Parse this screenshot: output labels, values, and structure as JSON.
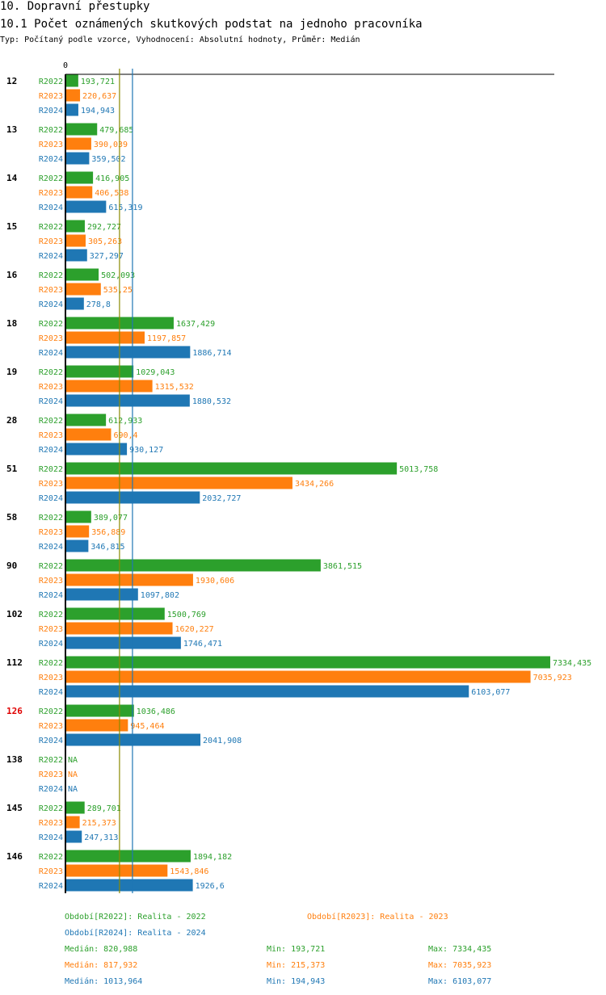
{
  "title": "10. Dopravní přestupky",
  "subtitle": "10.1 Počet oznámených skutkových podstat na jednoho pracovníka",
  "description": "Typ: Počítaný podle vzorce, Vyhodnocení: Absolutní hodnoty, Průměr: Medián",
  "colors": {
    "R2022": "#2ca02c",
    "R2023": "#ff7f0e",
    "R2024": "#1f77b4",
    "highlight": "#e00000",
    "group": "#000000"
  },
  "chart_data": {
    "type": "bar",
    "orientation": "horizontal",
    "axis_zero_label": "0",
    "xlim": [
      0,
      7334.435
    ],
    "series_names": [
      "R2022",
      "R2023",
      "R2024"
    ],
    "groups": [
      {
        "label": "12",
        "highlight": false,
        "values": [
          193.721,
          220.637,
          194.943
        ],
        "labels": [
          "193,721",
          "220,637",
          "194,943"
        ]
      },
      {
        "label": "13",
        "highlight": false,
        "values": [
          479.685,
          390.039,
          359.502
        ],
        "labels": [
          "479,685",
          "390,039",
          "359,502"
        ]
      },
      {
        "label": "14",
        "highlight": false,
        "values": [
          416.905,
          406.538,
          615.319
        ],
        "labels": [
          "416,905",
          "406,538",
          "615,319"
        ]
      },
      {
        "label": "15",
        "highlight": false,
        "values": [
          292.727,
          305.263,
          327.297
        ],
        "labels": [
          "292,727",
          "305,263",
          "327,297"
        ]
      },
      {
        "label": "16",
        "highlight": false,
        "values": [
          502.093,
          535.25,
          278.8
        ],
        "labels": [
          "502,093",
          "535,25",
          "278,8"
        ]
      },
      {
        "label": "18",
        "highlight": false,
        "values": [
          1637.429,
          1197.857,
          1886.714
        ],
        "labels": [
          "1637,429",
          "1197,857",
          "1886,714"
        ]
      },
      {
        "label": "19",
        "highlight": false,
        "values": [
          1029.043,
          1315.532,
          1880.532
        ],
        "labels": [
          "1029,043",
          "1315,532",
          "1880,532"
        ]
      },
      {
        "label": "28",
        "highlight": false,
        "values": [
          612.933,
          690.4,
          930.127
        ],
        "labels": [
          "612,933",
          "690,4",
          "930,127"
        ]
      },
      {
        "label": "51",
        "highlight": false,
        "values": [
          5013.758,
          3434.266,
          2032.727
        ],
        "labels": [
          "5013,758",
          "3434,266",
          "2032,727"
        ]
      },
      {
        "label": "58",
        "highlight": false,
        "values": [
          389.077,
          356.889,
          346.815
        ],
        "labels": [
          "389,077",
          "356,889",
          "346,815"
        ]
      },
      {
        "label": "90",
        "highlight": false,
        "values": [
          3861.515,
          1930.606,
          1097.802
        ],
        "labels": [
          "3861,515",
          "1930,606",
          "1097,802"
        ]
      },
      {
        "label": "102",
        "highlight": false,
        "values": [
          1500.769,
          1620.227,
          1746.471
        ],
        "labels": [
          "1500,769",
          "1620,227",
          "1746,471"
        ]
      },
      {
        "label": "112",
        "highlight": false,
        "values": [
          7334.435,
          7035.923,
          6103.077
        ],
        "labels": [
          "7334,435",
          "7035,923",
          "6103,077"
        ]
      },
      {
        "label": "126",
        "highlight": true,
        "values": [
          1036.486,
          945.464,
          2041.908
        ],
        "labels": [
          "1036,486",
          "945,464",
          "2041,908"
        ]
      },
      {
        "label": "138",
        "highlight": false,
        "values": [
          null,
          null,
          null
        ],
        "labels": [
          "NA",
          "NA",
          "NA"
        ]
      },
      {
        "label": "145",
        "highlight": false,
        "values": [
          289.701,
          215.373,
          247.313
        ],
        "labels": [
          "289,701",
          "215,373",
          "247,313"
        ]
      },
      {
        "label": "146",
        "highlight": false,
        "values": [
          1894.182,
          1543.846,
          1926.6
        ],
        "labels": [
          "1894,182",
          "1543,846",
          "1926,6"
        ]
      }
    ],
    "reference_lines": [
      {
        "series": "R2023",
        "value": 817.932
      },
      {
        "series": "R2024",
        "value": 1013.964
      }
    ],
    "legend": [
      {
        "series": "R2022",
        "text": "Období[R2022]: Realita - 2022"
      },
      {
        "series": "R2023",
        "text": "Období[R2023]: Realita - 2023"
      },
      {
        "series": "R2024",
        "text": "Období[R2024]: Realita - 2024"
      }
    ],
    "stats": [
      {
        "series": "R2022",
        "median": "Medián: 820,988",
        "min": "Min: 193,721",
        "max": "Max: 7334,435"
      },
      {
        "series": "R2023",
        "median": "Medián: 817,932",
        "min": "Min: 215,373",
        "max": "Max: 7035,923"
      },
      {
        "series": "R2024",
        "median": "Medián: 1013,964",
        "min": "Min: 194,943",
        "max": "Max: 6103,077"
      }
    ]
  }
}
